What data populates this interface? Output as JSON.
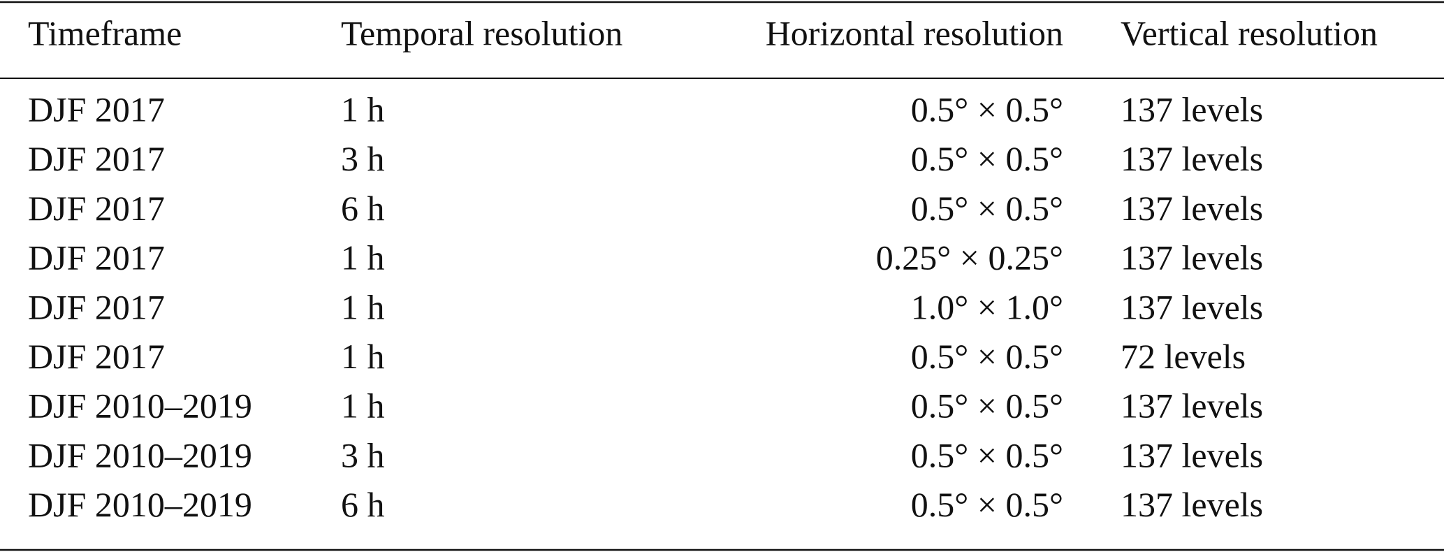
{
  "table": {
    "header": [
      "Timeframe",
      "Temporal resolution",
      "Horizontal resolution",
      "Vertical resolution"
    ],
    "rows": [
      [
        "DJF 2017",
        "1 h",
        "0.5° × 0.5°",
        "137 levels"
      ],
      [
        "DJF 2017",
        "3 h",
        "0.5° × 0.5°",
        "137 levels"
      ],
      [
        "DJF 2017",
        "6 h",
        "0.5° × 0.5°",
        "137 levels"
      ],
      [
        "DJF 2017",
        "1 h",
        "0.25° × 0.25°",
        "137 levels"
      ],
      [
        "DJF 2017",
        "1 h",
        "1.0° × 1.0°",
        "137 levels"
      ],
      [
        "DJF 2017",
        "1 h",
        "0.5° × 0.5°",
        "72 levels"
      ],
      [
        "DJF 2010–2019",
        "1 h",
        "0.5° × 0.5°",
        "137 levels"
      ],
      [
        "DJF 2010–2019",
        "3 h",
        "0.5° × 0.5°",
        "137 levels"
      ],
      [
        "DJF 2010–2019",
        "6 h",
        "0.5° × 0.5°",
        "137 levels"
      ]
    ]
  }
}
